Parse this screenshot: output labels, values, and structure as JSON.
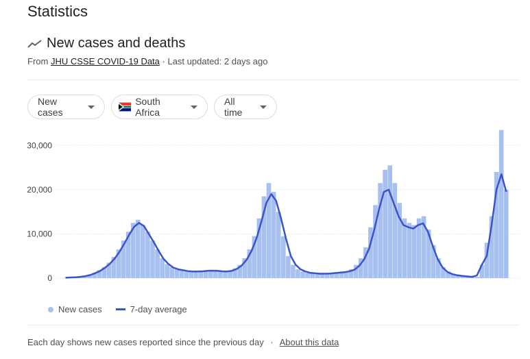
{
  "page": {
    "title": "Statistics"
  },
  "header": {
    "title": "New cases and deaths",
    "source_prefix": "From",
    "source_link": "JHU CSSE COVID-19 Data",
    "updated": "· Last updated: 2 days ago"
  },
  "filters": {
    "metric": "New cases",
    "country": "South Africa",
    "range": "All time"
  },
  "legend": {
    "bars": "New cases",
    "line": "7-day average"
  },
  "footer": {
    "text": "Each day shows new cases reported since the previous day",
    "sep": "·",
    "link": "About this data"
  },
  "colors": {
    "bar": "#a8c0f0",
    "line": "#3a53c9",
    "grid": "#dadce0"
  },
  "chart_data": {
    "type": "bar",
    "title": "",
    "ylim": [
      0,
      35000
    ],
    "yticks": [
      0,
      10000,
      20000,
      30000
    ],
    "ytick_labels": [
      "0",
      "10,000",
      "20,000",
      "30,000"
    ],
    "grid": true,
    "legend_position": "bottom-left",
    "series": [
      {
        "name": "New cases",
        "kind": "bars",
        "values": [
          50,
          100,
          200,
          300,
          500,
          800,
          1200,
          1800,
          2500,
          3500,
          4800,
          6500,
          8500,
          10500,
          12500,
          13200,
          12000,
          10500,
          8500,
          6500,
          4500,
          3200,
          2500,
          2000,
          1800,
          1600,
          1500,
          1500,
          1600,
          1700,
          1800,
          1700,
          1600,
          1500,
          1700,
          2200,
          3000,
          4500,
          6500,
          9500,
          13500,
          18500,
          21500,
          19500,
          15000,
          9500,
          5000,
          3000,
          2000,
          1500,
          1200,
          1100,
          1000,
          1000,
          1100,
          1200,
          1300,
          1400,
          1600,
          2000,
          3000,
          4500,
          7000,
          11500,
          16500,
          21500,
          24500,
          25500,
          21500,
          17000,
          13500,
          12500,
          12000,
          13500,
          14000,
          11000,
          7500,
          4500,
          2500,
          1500,
          1000,
          700,
          500,
          400,
          300,
          300,
          3000,
          8000,
          14000,
          24000,
          33500,
          20000
        ]
      },
      {
        "name": "7-day average",
        "kind": "line",
        "values": [
          100,
          150,
          200,
          300,
          450,
          700,
          1100,
          1600,
          2300,
          3200,
          4400,
          5900,
          7800,
          9800,
          11600,
          12500,
          11800,
          10000,
          8200,
          6200,
          4400,
          3200,
          2400,
          2000,
          1800,
          1600,
          1500,
          1500,
          1550,
          1650,
          1700,
          1650,
          1550,
          1500,
          1650,
          2100,
          2900,
          4200,
          6200,
          9000,
          12800,
          17000,
          19000,
          17500,
          13500,
          9000,
          5000,
          3000,
          2000,
          1500,
          1200,
          1100,
          1000,
          1000,
          1050,
          1150,
          1250,
          1350,
          1550,
          1900,
          2800,
          4300,
          6700,
          10800,
          15500,
          19500,
          20000,
          17000,
          14000,
          12000,
          11500,
          11200,
          12000,
          12400,
          10500,
          7200,
          4300,
          2400,
          1400,
          900,
          650,
          500,
          400,
          300,
          600,
          3000,
          5000,
          12000,
          20000,
          23500,
          19500
        ]
      }
    ]
  }
}
